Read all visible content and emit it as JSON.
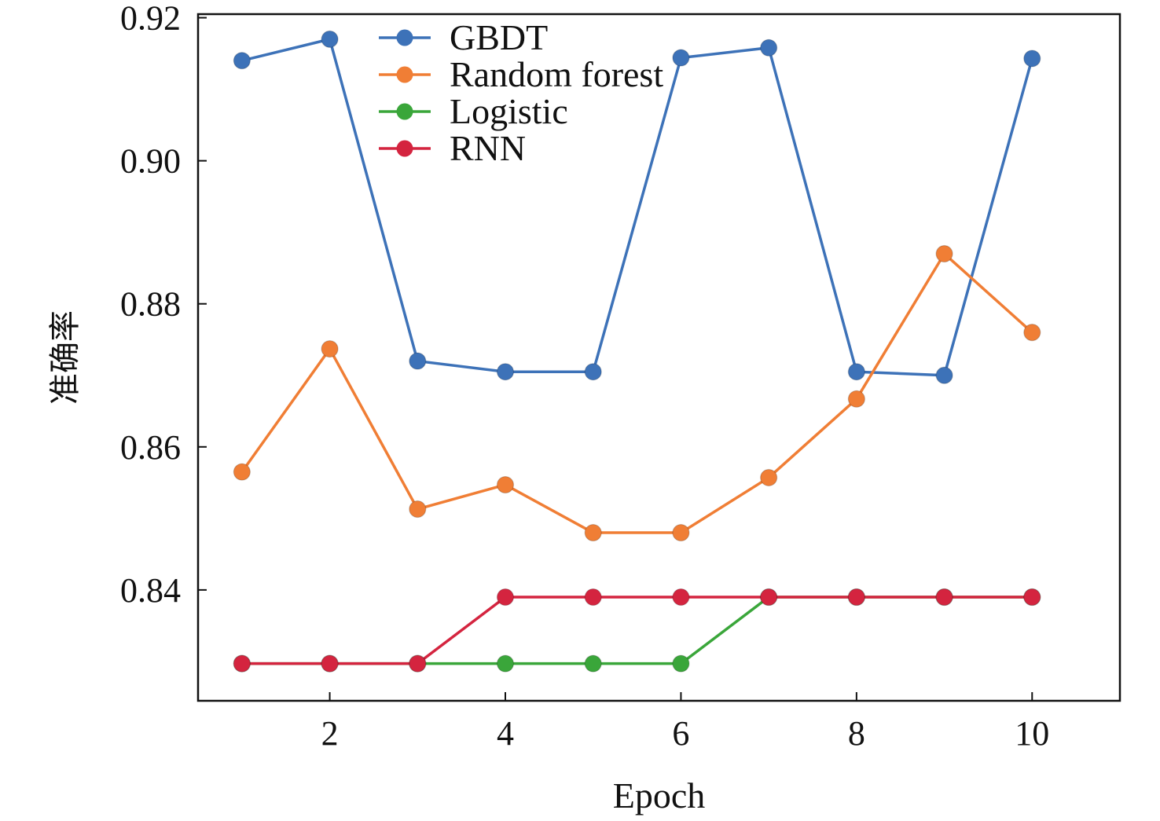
{
  "chart_data": {
    "type": "line",
    "xlabel": "Epoch",
    "ylabel": "准确率",
    "xlim": [
      0.5,
      11.0
    ],
    "ylim": [
      0.8245,
      0.9205
    ],
    "x_ticks": [
      2,
      4,
      6,
      8,
      10
    ],
    "y_ticks": [
      0.84,
      0.86,
      0.88,
      0.9,
      0.92
    ],
    "y_tick_labels": [
      "0.84",
      "0.86",
      "0.88",
      "0.90",
      "0.92"
    ],
    "x": [
      1,
      2,
      3,
      4,
      5,
      6,
      7,
      8,
      9,
      10
    ],
    "legend_position": "top-center",
    "grid": false,
    "series": [
      {
        "name": "GBDT",
        "color": "#3d72b8",
        "values": [
          0.914,
          0.917,
          0.872,
          0.8705,
          0.8705,
          0.9144,
          0.9158,
          0.8705,
          0.87,
          0.9143
        ]
      },
      {
        "name": "Random forest",
        "color": "#f07e35",
        "values": [
          0.8565,
          0.8737,
          0.8513,
          0.8547,
          0.848,
          0.848,
          0.8557,
          0.8667,
          0.887,
          0.876
        ]
      },
      {
        "name": "Logistic",
        "color": "#3aa63a",
        "values": [
          0.8297,
          0.8297,
          0.8297,
          0.8297,
          0.8297,
          0.8297,
          0.839,
          0.839,
          0.839,
          0.839
        ]
      },
      {
        "name": "RNN",
        "color": "#d4243f",
        "values": [
          0.8297,
          0.8297,
          0.8297,
          0.839,
          0.839,
          0.839,
          0.839,
          0.839,
          0.839,
          0.839
        ]
      }
    ]
  }
}
